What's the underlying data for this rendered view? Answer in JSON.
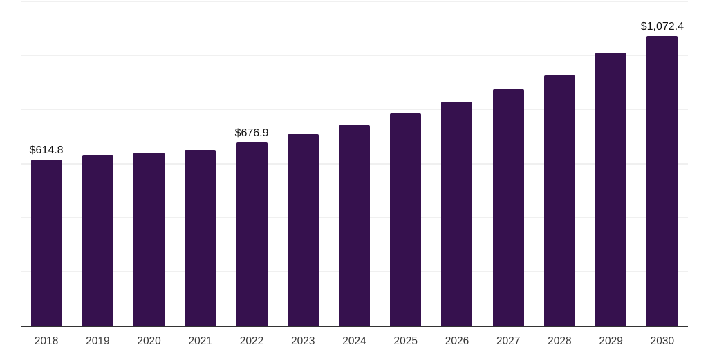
{
  "chart_data": {
    "type": "bar",
    "title": "",
    "categories": [
      "2018",
      "2019",
      "2020",
      "2021",
      "2022",
      "2023",
      "2024",
      "2025",
      "2026",
      "2027",
      "2028",
      "2029",
      "2030"
    ],
    "values": [
      614.8,
      631.5,
      638.5,
      651.0,
      676.9,
      708.0,
      741.0,
      785.0,
      830.0,
      876.0,
      926.0,
      1011.0,
      1072.4
    ],
    "point_labels": [
      "$614.8",
      "",
      "",
      "",
      "$676.9",
      "",
      "",
      "",
      "",
      "",
      "",
      "",
      "$1,072.4"
    ],
    "xlabel": "",
    "ylabel": "",
    "ylim": [
      0,
      1200
    ],
    "gridline_step": 200,
    "grid": "horizontal",
    "legend": "none",
    "colors": {
      "bar": "#36114e",
      "gridline": "#f0f0f0",
      "axis_line": "#333333",
      "value_label_text": "#111111",
      "tick_label_text": "#383838",
      "background": "#ffffff"
    }
  }
}
